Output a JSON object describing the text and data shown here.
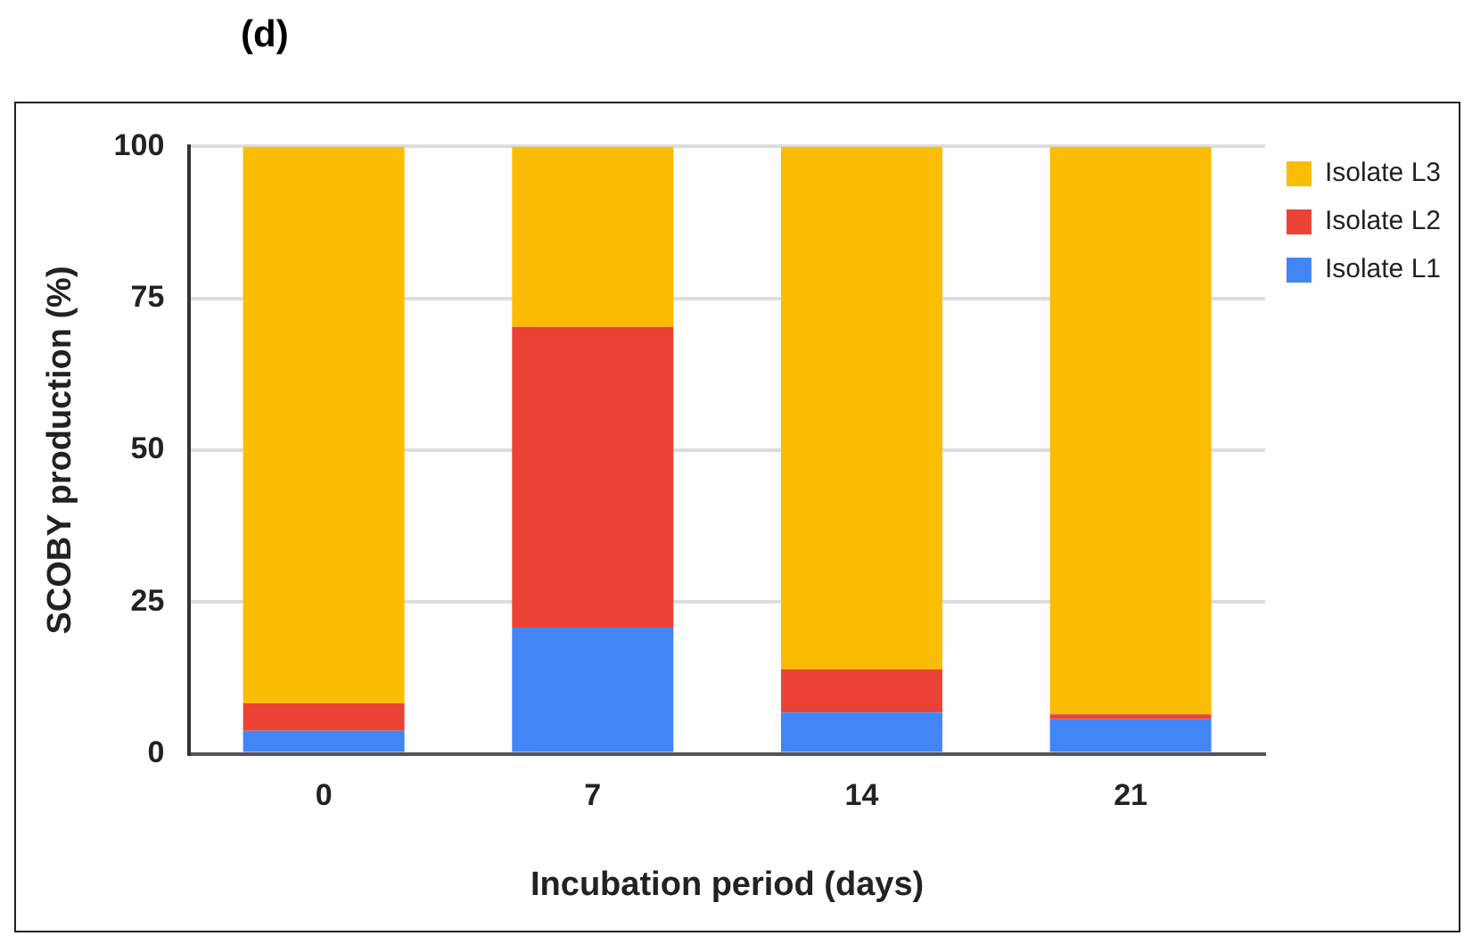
{
  "chart_data": {
    "type": "bar",
    "title": "(d)",
    "xlabel": "Incubation period (days)",
    "ylabel": "SCOBY production (%)",
    "categories": [
      "0",
      "7",
      "14",
      "21"
    ],
    "stacked": true,
    "series": [
      {
        "name": "Isolate L1",
        "color": "#4285f4",
        "values": [
          3.8,
          20.8,
          6.8,
          5.7
        ]
      },
      {
        "name": "Isolate L2",
        "color": "#ea4335",
        "values": [
          4.5,
          49.5,
          7.1,
          0.8
        ]
      },
      {
        "name": "Isolate L3",
        "color": "#fbbc04",
        "values": [
          91.7,
          29.7,
          86.1,
          93.5
        ]
      }
    ],
    "ylim": [
      0,
      100
    ],
    "yticks": [
      0,
      25,
      50,
      75,
      100
    ],
    "grid": "y",
    "legend": "top right"
  }
}
